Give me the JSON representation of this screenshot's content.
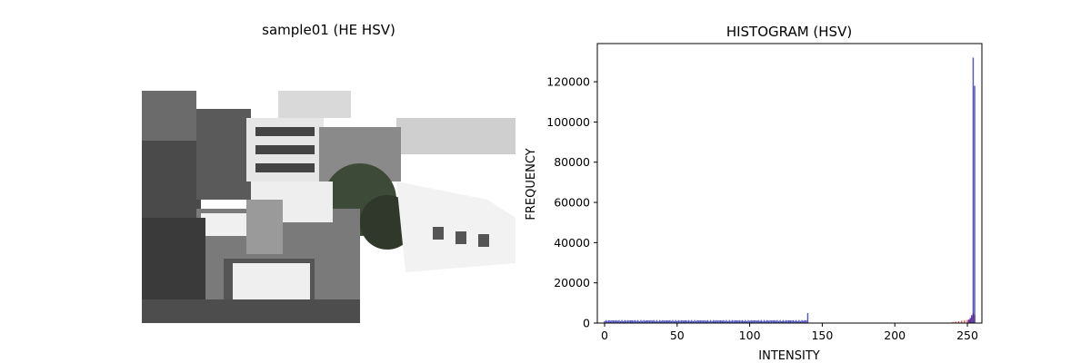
{
  "left_panel": {
    "title": "sample01 (HE HSV)",
    "image_description": "rooftop view of buildings, histogram-equalized in HSV; bright whites dominate sky and rooftops"
  },
  "chart_data": {
    "type": "bar",
    "title": "HISTOGRAM (HSV)",
    "xlabel": "INTENSITY",
    "ylabel": "FREQUENCY",
    "xlim": [
      -5,
      260
    ],
    "ylim": [
      0,
      139000
    ],
    "xticks": [
      0,
      50,
      100,
      150,
      200,
      250
    ],
    "yticks": [
      0,
      20000,
      40000,
      60000,
      80000,
      100000,
      120000
    ],
    "series": [
      {
        "name": "",
        "color": "#d62728",
        "x": [
          240,
          242,
          244,
          246,
          248,
          250,
          251,
          252,
          253,
          254,
          255
        ],
        "values": [
          500,
          700,
          900,
          1100,
          1300,
          1500,
          1800,
          2500,
          3500,
          5000,
          4000
        ]
      },
      {
        "name": "",
        "color": "#2a2ab8",
        "low_band": {
          "x_start": 0,
          "x_end": 139,
          "approx_level": 1500,
          "peak_x": 140,
          "peak_value": 5000
        },
        "x": [
          251,
          252,
          253,
          254,
          255
        ],
        "values": [
          1500,
          2500,
          4000,
          132000,
          118000
        ]
      }
    ]
  }
}
